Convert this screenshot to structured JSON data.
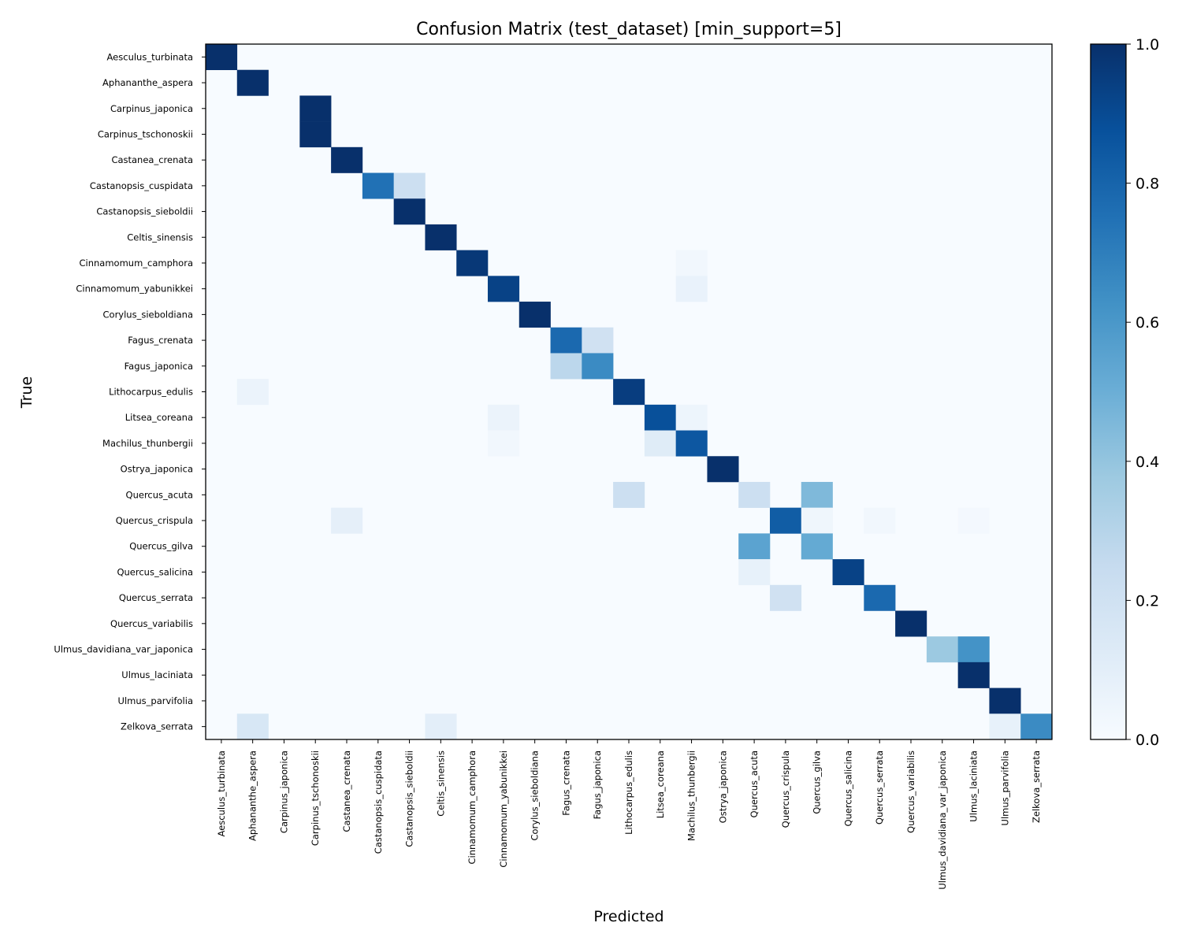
{
  "chart_data": {
    "type": "heatmap",
    "title": "Confusion Matrix (test_dataset) [min_support=5]",
    "xlabel": "Predicted",
    "ylabel": "True",
    "colormap": "Blues",
    "colorbar": {
      "min": 0.0,
      "max": 1.0,
      "ticks": [
        "0.0",
        "0.2",
        "0.4",
        "0.6",
        "0.8",
        "1.0"
      ]
    },
    "grid": false,
    "rows": [
      "Aesculus_turbinata",
      "Aphananthe_aspera",
      "Carpinus_japonica",
      "Carpinus_tschonoskii",
      "Castanea_crenata",
      "Castanopsis_cuspidata",
      "Castanopsis_sieboldii",
      "Celtis_sinensis",
      "Cinnamomum_camphora",
      "Cinnamomum_yabunikkei",
      "Corylus_sieboldiana",
      "Fagus_crenata",
      "Fagus_japonica",
      "Lithocarpus_edulis",
      "Litsea_coreana",
      "Machilus_thunbergii",
      "Ostrya_japonica",
      "Quercus_acuta",
      "Quercus_crispula",
      "Quercus_gilva",
      "Quercus_salicina",
      "Quercus_serrata",
      "Quercus_variabilis",
      "Ulmus_davidiana_var_japonica",
      "Ulmus_laciniata",
      "Ulmus_parvifolia",
      "Zelkova_serrata"
    ],
    "columns": [
      "Aesculus_turbinata",
      "Aphananthe_aspera",
      "Carpinus_japonica",
      "Carpinus_tschonoskii",
      "Castanea_crenata",
      "Castanopsis_cuspidata",
      "Castanopsis_sieboldii",
      "Celtis_sinensis",
      "Cinnamomum_camphora",
      "Cinnamomum_yabunikkei",
      "Corylus_sieboldiana",
      "Fagus_crenata",
      "Fagus_japonica",
      "Lithocarpus_edulis",
      "Litsea_coreana",
      "Machilus_thunbergii",
      "Ostrya_japonica",
      "Quercus_acuta",
      "Quercus_crispula",
      "Quercus_gilva",
      "Quercus_salicina",
      "Quercus_serrata",
      "Quercus_variabilis",
      "Ulmus_davidiana_var_japonica",
      "Ulmus_laciniata",
      "Ulmus_parvifolia",
      "Zelkova_serrata"
    ],
    "cells": [
      [
        0,
        0,
        1.0
      ],
      [
        1,
        1,
        1.0
      ],
      [
        2,
        3,
        1.0
      ],
      [
        3,
        3,
        1.0
      ],
      [
        4,
        4,
        1.0
      ],
      [
        5,
        5,
        0.75
      ],
      [
        5,
        6,
        0.22
      ],
      [
        6,
        6,
        1.0
      ],
      [
        7,
        7,
        1.0
      ],
      [
        8,
        8,
        0.97
      ],
      [
        8,
        15,
        0.03
      ],
      [
        9,
        9,
        0.93
      ],
      [
        9,
        15,
        0.07
      ],
      [
        10,
        10,
        1.0
      ],
      [
        11,
        11,
        0.78
      ],
      [
        11,
        12,
        0.2
      ],
      [
        12,
        11,
        0.28
      ],
      [
        12,
        12,
        0.65
      ],
      [
        13,
        1,
        0.06
      ],
      [
        13,
        13,
        0.95
      ],
      [
        14,
        9,
        0.06
      ],
      [
        14,
        14,
        0.88
      ],
      [
        14,
        15,
        0.05
      ],
      [
        15,
        9,
        0.03
      ],
      [
        15,
        14,
        0.12
      ],
      [
        15,
        15,
        0.85
      ],
      [
        16,
        16,
        1.0
      ],
      [
        17,
        13,
        0.22
      ],
      [
        17,
        17,
        0.22
      ],
      [
        17,
        19,
        0.45
      ],
      [
        18,
        4,
        0.09
      ],
      [
        18,
        18,
        0.83
      ],
      [
        18,
        19,
        0.04
      ],
      [
        18,
        21,
        0.03
      ],
      [
        18,
        24,
        0.02
      ],
      [
        19,
        17,
        0.55
      ],
      [
        19,
        19,
        0.52
      ],
      [
        20,
        17,
        0.08
      ],
      [
        20,
        20,
        0.93
      ],
      [
        21,
        18,
        0.2
      ],
      [
        21,
        21,
        0.78
      ],
      [
        22,
        22,
        1.0
      ],
      [
        23,
        23,
        0.38
      ],
      [
        23,
        24,
        0.62
      ],
      [
        24,
        24,
        1.0
      ],
      [
        25,
        25,
        1.0
      ],
      [
        26,
        1,
        0.16
      ],
      [
        26,
        7,
        0.1
      ],
      [
        26,
        25,
        0.08
      ],
      [
        26,
        26,
        0.65
      ]
    ]
  }
}
